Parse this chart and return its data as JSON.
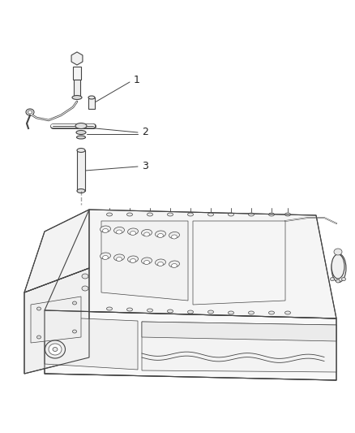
{
  "bg_color": "#ffffff",
  "fig_width": 4.38,
  "fig_height": 5.33,
  "dpi": 100,
  "lc": "#444444",
  "lw_main": 0.8,
  "lw_thin": 0.5,
  "label_fs": 9,
  "label_color": "#222222",
  "parts_color": "#ffffff",
  "shadow_color": "#e0e0e0"
}
